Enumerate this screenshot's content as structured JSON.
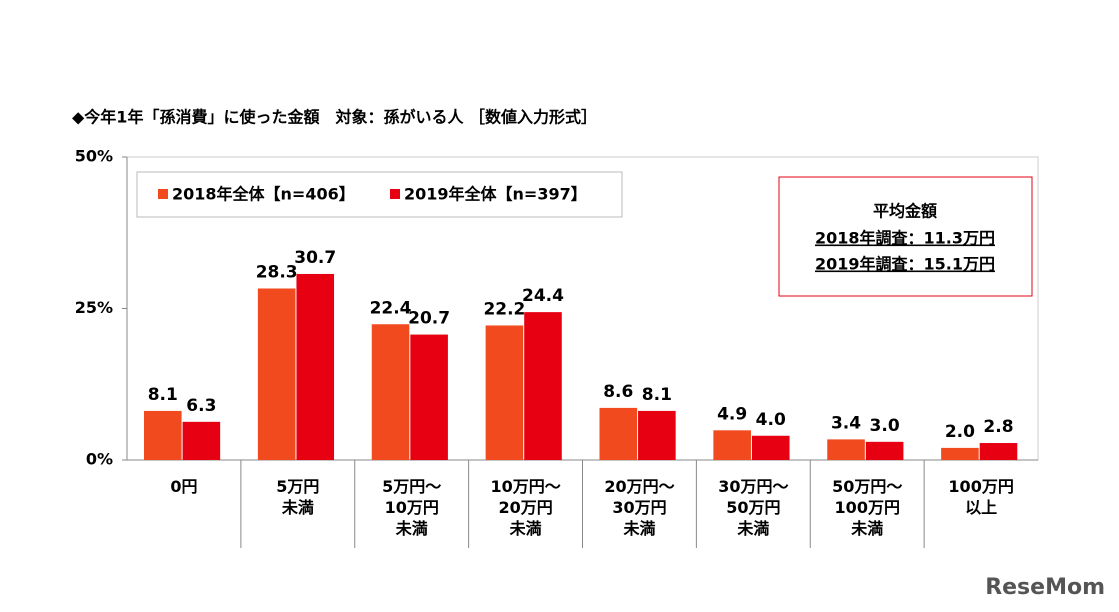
{
  "chart_data": {
    "type": "bar",
    "title": "◆今年1年「孫消費」に使った金額　対象：孫がいる人 ［数値入力形式］",
    "categories": [
      "0円",
      "5万円\n未満",
      "5万円～\n10万円\n未満",
      "10万円～\n20万円\n未満",
      "20万円～\n30万円\n未満",
      "30万円～\n50万円\n未満",
      "50万円～\n100万円\n未満",
      "100万円\n以上"
    ],
    "series": [
      {
        "name": "2018年全体【n=406】",
        "color": "#f04a1e",
        "values": [
          8.1,
          28.3,
          22.4,
          22.2,
          8.6,
          4.9,
          3.4,
          2.0
        ],
        "value_labels": [
          "8.1",
          "28.3",
          "22.4",
          "22.2",
          "8.6",
          "4.9",
          "3.4",
          "2.0"
        ]
      },
      {
        "name": "2019年全体【n=397】",
        "color": "#e60012",
        "values": [
          6.3,
          30.7,
          20.7,
          24.4,
          8.1,
          4.0,
          3.0,
          2.8
        ],
        "value_labels": [
          "6.3",
          "30.7",
          "20.7",
          "24.4",
          "8.1",
          "4.0",
          "3.0",
          "2.8"
        ]
      }
    ],
    "ylim": [
      0,
      50
    ],
    "yticks": [
      {
        "value": 0,
        "label": "0%"
      },
      {
        "value": 25,
        "label": "25%"
      },
      {
        "value": 50,
        "label": "50%"
      }
    ],
    "annotation": {
      "title": "平均金額",
      "lines": [
        "2018年調査：11.3万円",
        "2019年調査：15.1万円"
      ]
    },
    "watermark": "ReseMom"
  }
}
